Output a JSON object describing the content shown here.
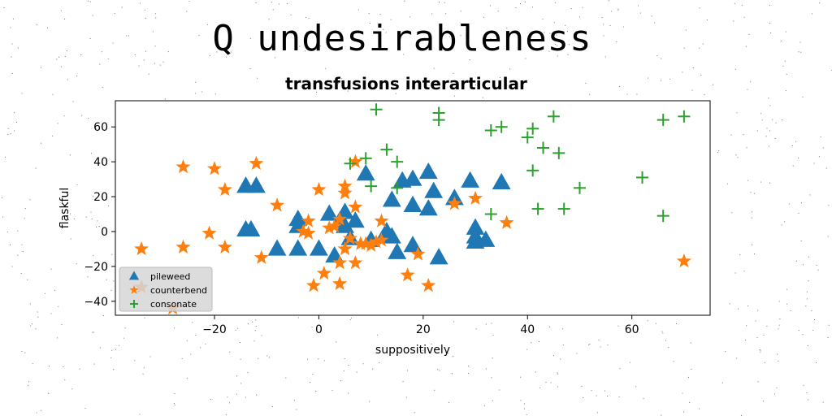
{
  "figure": {
    "title": "Q undesirableness"
  },
  "chart_data": {
    "type": "scatter",
    "title": "transfusions interarticular",
    "xlabel": "suppositively",
    "ylabel": "flaskful",
    "xlim": [
      -39,
      75
    ],
    "ylim": [
      -48,
      75
    ],
    "xticks": [
      -20,
      0,
      20,
      40,
      60
    ],
    "yticks": [
      -40,
      -20,
      0,
      20,
      40,
      60
    ],
    "xtick_labels": [
      "−20",
      "0",
      "20",
      "40",
      "60"
    ],
    "ytick_labels": [
      "−40",
      "−20",
      "0",
      "20",
      "40",
      "60"
    ],
    "grid": false,
    "legend_position": "lower-left",
    "series": [
      {
        "name": "pileweed",
        "marker": "triangle",
        "color": "#1f77b4",
        "points": [
          [
            -14,
            26
          ],
          [
            -12,
            26
          ],
          [
            -14,
            1
          ],
          [
            -13,
            1
          ],
          [
            -8,
            -10
          ],
          [
            -4,
            -10
          ],
          [
            -4,
            7
          ],
          [
            -4,
            3
          ],
          [
            0,
            -10
          ],
          [
            2,
            10
          ],
          [
            3,
            -14
          ],
          [
            4,
            6
          ],
          [
            5,
            11
          ],
          [
            5,
            3
          ],
          [
            6,
            -4
          ],
          [
            7,
            6
          ],
          [
            9,
            33
          ],
          [
            10,
            -5
          ],
          [
            13,
            0
          ],
          [
            14,
            -3
          ],
          [
            14,
            18
          ],
          [
            15,
            -12
          ],
          [
            16,
            29
          ],
          [
            18,
            30
          ],
          [
            18,
            -8
          ],
          [
            18,
            15
          ],
          [
            21,
            34
          ],
          [
            21,
            13
          ],
          [
            22,
            23
          ],
          [
            23,
            -15
          ],
          [
            26,
            19
          ],
          [
            29,
            29
          ],
          [
            30,
            -6
          ],
          [
            30,
            2
          ],
          [
            30,
            -3
          ],
          [
            32,
            -5
          ],
          [
            35,
            28
          ]
        ]
      },
      {
        "name": "counterbend",
        "marker": "star",
        "color": "#ff7f0e",
        "points": [
          [
            -34,
            -10
          ],
          [
            -34,
            -32
          ],
          [
            -28,
            -44
          ],
          [
            -26,
            37
          ],
          [
            -26,
            -9
          ],
          [
            -21,
            -1
          ],
          [
            -20,
            36
          ],
          [
            -18,
            24
          ],
          [
            -18,
            -9
          ],
          [
            -12,
            39
          ],
          [
            -11,
            -15
          ],
          [
            -8,
            15
          ],
          [
            -3,
            0
          ],
          [
            -2,
            6
          ],
          [
            -2,
            -1
          ],
          [
            -1,
            -31
          ],
          [
            0,
            24
          ],
          [
            1,
            -24
          ],
          [
            2,
            2
          ],
          [
            3,
            3
          ],
          [
            4,
            -30
          ],
          [
            4,
            -18
          ],
          [
            4,
            7
          ],
          [
            5,
            -10
          ],
          [
            5,
            22
          ],
          [
            5,
            26
          ],
          [
            6,
            -4
          ],
          [
            7,
            40
          ],
          [
            7,
            -18
          ],
          [
            7,
            14
          ],
          [
            8,
            -7
          ],
          [
            9,
            -7
          ],
          [
            10,
            -8
          ],
          [
            11,
            -6
          ],
          [
            12,
            6
          ],
          [
            12,
            -5
          ],
          [
            17,
            -25
          ],
          [
            19,
            -13
          ],
          [
            21,
            -31
          ],
          [
            26,
            16
          ],
          [
            30,
            19
          ],
          [
            36,
            5
          ],
          [
            70,
            -17
          ]
        ]
      },
      {
        "name": "consonate",
        "marker": "plus",
        "color": "#2ca02c",
        "points": [
          [
            6,
            39
          ],
          [
            9,
            42
          ],
          [
            10,
            26
          ],
          [
            11,
            70
          ],
          [
            13,
            47
          ],
          [
            15,
            40
          ],
          [
            15,
            25
          ],
          [
            23,
            68
          ],
          [
            23,
            64
          ],
          [
            33,
            58
          ],
          [
            33,
            10
          ],
          [
            35,
            60
          ],
          [
            40,
            54
          ],
          [
            41,
            35
          ],
          [
            41,
            59
          ],
          [
            42,
            13
          ],
          [
            43,
            48
          ],
          [
            45,
            66
          ],
          [
            46,
            45
          ],
          [
            47,
            13
          ],
          [
            50,
            25
          ],
          [
            62,
            31
          ],
          [
            66,
            9
          ],
          [
            66,
            64
          ],
          [
            70,
            66
          ]
        ]
      }
    ]
  }
}
